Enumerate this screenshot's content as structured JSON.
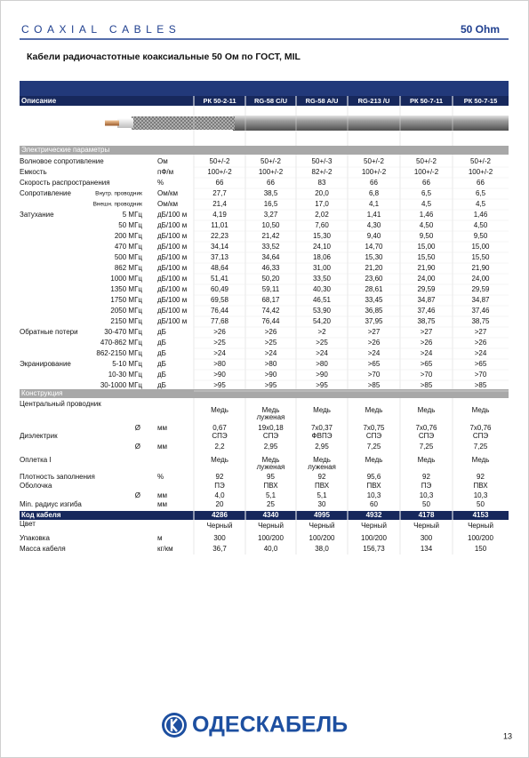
{
  "header": {
    "title": "COAXIAL CABLES",
    "impedance": "50 Ohm"
  },
  "subtitle": "Кабели радиочастотные коаксиальные 50 Ом по ГОСТ, MIL",
  "table": {
    "description_label": "Описание",
    "columns": [
      "РК 50-2-11",
      "RG-58 C/U",
      "RG-58 A/U",
      "RG-213 /U",
      "РК 50-7-11",
      "РК 50-7-15"
    ],
    "electrical": {
      "title": "Электрические параметры",
      "rows": [
        {
          "label": "Волновое сопротивление",
          "unit": "Ом",
          "values": [
            "50+/-2",
            "50+/-2",
            "50+/-3",
            "50+/-2",
            "50+/-2",
            "50+/-2"
          ]
        },
        {
          "label": "Емкость",
          "unit": "пФ/м",
          "values": [
            "100+/-2",
            "100+/-2",
            "82+/-2",
            "100+/-2",
            "100+/-2",
            "100+/-2"
          ]
        },
        {
          "label": "Скорость распространения",
          "unit": "%",
          "values": [
            "66",
            "66",
            "83",
            "66",
            "66",
            "66"
          ]
        },
        {
          "label": "Сопротивление",
          "sub": "Внутр. проводник",
          "unit": "Ом/км",
          "values": [
            "27,7",
            "38,5",
            "20,0",
            "6,8",
            "6,5",
            "6,5"
          ]
        },
        {
          "sub": "Внешн. проводник",
          "unit": "Ом/км",
          "values": [
            "21,4",
            "16,5",
            "17,0",
            "4,1",
            "4,5",
            "4,5"
          ]
        },
        {
          "label": "Затухание",
          "sub": "5 МГц",
          "unit": "дБ/100 м",
          "values": [
            "4,19",
            "3,27",
            "2,02",
            "1,41",
            "1,46",
            "1,46"
          ]
        },
        {
          "sub": "50 МГц",
          "unit": "дБ/100 м",
          "values": [
            "11,01",
            "10,50",
            "7,60",
            "4,30",
            "4,50",
            "4,50"
          ]
        },
        {
          "sub": "200 МГц",
          "unit": "дБ/100 м",
          "values": [
            "22,23",
            "21,42",
            "15,30",
            "9,40",
            "9,50",
            "9,50"
          ]
        },
        {
          "sub": "470 МГц",
          "unit": "дБ/100 м",
          "values": [
            "34,14",
            "33,52",
            "24,10",
            "14,70",
            "15,00",
            "15,00"
          ]
        },
        {
          "sub": "500 МГц",
          "unit": "дБ/100 м",
          "values": [
            "37,13",
            "34,64",
            "18,06",
            "15,30",
            "15,50",
            "15,50"
          ]
        },
        {
          "sub": "862 МГц",
          "unit": "дБ/100 м",
          "values": [
            "48,64",
            "46,33",
            "31,00",
            "21,20",
            "21,90",
            "21,90"
          ]
        },
        {
          "sub": "1000 МГц",
          "unit": "дБ/100 м",
          "values": [
            "51,41",
            "50,20",
            "33,50",
            "23,60",
            "24,00",
            "24,00"
          ]
        },
        {
          "sub": "1350 МГц",
          "unit": "дБ/100 м",
          "values": [
            "60,49",
            "59,11",
            "40,30",
            "28,61",
            "29,59",
            "29,59"
          ]
        },
        {
          "sub": "1750 МГц",
          "unit": "дБ/100 м",
          "values": [
            "69,58",
            "68,17",
            "46,51",
            "33,45",
            "34,87",
            "34,87"
          ]
        },
        {
          "sub": "2050 МГц",
          "unit": "дБ/100 м",
          "values": [
            "76,44",
            "74,42",
            "53,90",
            "36,85",
            "37,46",
            "37,46"
          ]
        },
        {
          "sub": "2150 МГц",
          "unit": "дБ/100 м",
          "values": [
            "77,68",
            "76,44",
            "54,20",
            "37,95",
            "38,75",
            "38,75"
          ]
        },
        {
          "label": "Обратные потери",
          "sub": "30-470 МГц",
          "unit": "дБ",
          "values": [
            ">26",
            ">26",
            ">2",
            ">27",
            ">27",
            ">27"
          ]
        },
        {
          "sub": "470-862 МГц",
          "unit": "дБ",
          "values": [
            ">25",
            ">25",
            ">25",
            ">26",
            ">26",
            ">26"
          ]
        },
        {
          "sub": "862-2150 МГц",
          "unit": "дБ",
          "values": [
            ">24",
            ">24",
            ">24",
            ">24",
            ">24",
            ">24"
          ]
        },
        {
          "label": "Экранирование",
          "sub": "5-10 МГц",
          "unit": "дБ",
          "values": [
            ">80",
            ">80",
            ">80",
            ">65",
            ">65",
            ">65"
          ]
        },
        {
          "sub": "10-30 МГц",
          "unit": "дБ",
          "values": [
            ">90",
            ">90",
            ">90",
            ">70",
            ">70",
            ">70"
          ]
        },
        {
          "sub": "30-1000 МГц",
          "unit": "дБ",
          "values": [
            ">95",
            ">95",
            ">95",
            ">85",
            ">85",
            ">85"
          ]
        }
      ]
    },
    "construction": {
      "title": "Конструкция",
      "rows": [
        {
          "label": "Центральный проводник",
          "values": [
            [
              "Медь"
            ],
            [
              "Медь",
              "луженая"
            ],
            [
              "Медь"
            ],
            [
              "Медь"
            ],
            [
              "Медь"
            ],
            [
              "Медь"
            ]
          ]
        },
        {
          "sub": "Ø",
          "unit": "мм",
          "values": [
            [
              "0,67"
            ],
            [
              "19x0,18"
            ],
            [
              "7x0,37"
            ],
            [
              "7x0,75"
            ],
            [
              "7x0,76"
            ],
            [
              "7x0,76"
            ]
          ]
        },
        {
          "label": "Диэлектрик",
          "values": [
            [
              "СПЭ"
            ],
            [
              "СПЭ"
            ],
            [
              "ФВПЭ"
            ],
            [
              "СПЭ"
            ],
            [
              "СПЭ"
            ],
            [
              "СПЭ"
            ]
          ]
        },
        {
          "sub": "Ø",
          "unit": "мм",
          "values": [
            [
              "2,2"
            ],
            [
              "2,95"
            ],
            [
              "2,95"
            ],
            [
              "7,25"
            ],
            [
              "7,25"
            ],
            [
              "7,25"
            ]
          ]
        },
        {
          "label": "Оплетка I",
          "values": [
            [
              "Медь"
            ],
            [
              "Медь",
              "луженая"
            ],
            [
              "Медь",
              "луженая"
            ],
            [
              "Медь"
            ],
            [
              "Медь"
            ],
            [
              "Медь"
            ]
          ]
        },
        {
          "label": "Плотность заполнения",
          "unit": "%",
          "values": [
            [
              "92"
            ],
            [
              "95"
            ],
            [
              "92"
            ],
            [
              "95,6"
            ],
            [
              "92"
            ],
            [
              "92"
            ]
          ]
        },
        {
          "label": "Оболочка",
          "values": [
            [
              "ПЭ"
            ],
            [
              "ПВХ"
            ],
            [
              "ПВХ"
            ],
            [
              "ПВХ"
            ],
            [
              "ПЭ"
            ],
            [
              "ПВХ"
            ]
          ]
        },
        {
          "sub": "Ø",
          "unit": "мм",
          "values": [
            [
              "4,0"
            ],
            [
              "5,1"
            ],
            [
              "5,1"
            ],
            [
              "10,3"
            ],
            [
              "10,3"
            ],
            [
              "10,3"
            ]
          ]
        },
        {
          "label": "Min. радиус изгиба",
          "unit": "мм",
          "values": [
            [
              "20"
            ],
            [
              "25"
            ],
            [
              "30"
            ],
            [
              "60"
            ],
            [
              "50"
            ],
            [
              "50"
            ]
          ]
        }
      ]
    },
    "code": {
      "label": "Код кабеля",
      "values": [
        "4286",
        "4340",
        "4995",
        "4932",
        "4178",
        "4153"
      ]
    },
    "extra_rows": [
      {
        "label": "Цвет",
        "values": [
          "Черный",
          "Черный",
          "Черный",
          "Черный",
          "Черный",
          "Черный"
        ]
      },
      {
        "label": "Упаковка",
        "unit": "м",
        "values": [
          "300",
          "100/200",
          "100/200",
          "100/200",
          "300",
          "100/200"
        ]
      },
      {
        "label": "Масса кабеля",
        "unit": "кг/км",
        "values": [
          "36,7",
          "40,0",
          "38,0",
          "156,73",
          "134",
          "150"
        ]
      }
    ]
  },
  "footer": {
    "brand": "ОДЕСКАБЕЛЬ",
    "page": "13"
  }
}
